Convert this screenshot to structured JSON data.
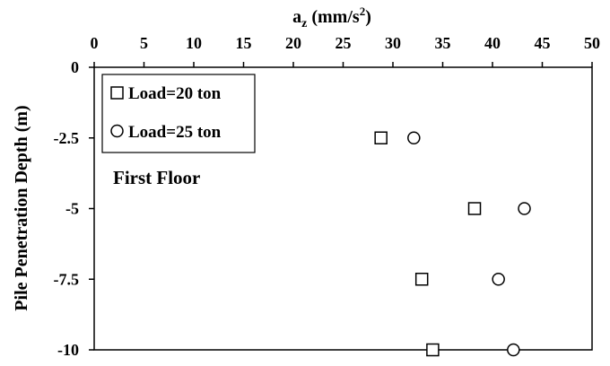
{
  "chart_data": {
    "type": "scatter",
    "x_axis_title": "a",
    "x_axis_title_sub": "z",
    "x_axis_units_prefix": " (mm/s",
    "x_axis_units_sup": "2",
    "x_axis_units_suffix": ")",
    "x_axis_position": "top",
    "y_axis_title": "Pile Penetration Depth (m)",
    "xlim": [
      0,
      50
    ],
    "ylim": [
      -10,
      0
    ],
    "x_ticks": [
      0,
      5,
      10,
      15,
      20,
      25,
      30,
      35,
      40,
      45,
      50
    ],
    "y_ticks": [
      0,
      -2.5,
      -5,
      -7.5,
      -10
    ],
    "y_tick_labels": [
      "0",
      "-2.5",
      "-5",
      "-7.5",
      "-10"
    ],
    "grid": false,
    "legend_position": "top-left",
    "annotation": "First Floor",
    "series": [
      {
        "name": "Load=20 ton",
        "marker": "square",
        "points": [
          {
            "x": 28.8,
            "y": -2.5
          },
          {
            "x": 38.2,
            "y": -5
          },
          {
            "x": 32.9,
            "y": -7.5
          },
          {
            "x": 34.0,
            "y": -10
          }
        ]
      },
      {
        "name": "Load=25 ton",
        "marker": "circle",
        "points": [
          {
            "x": 32.1,
            "y": -2.5
          },
          {
            "x": 43.2,
            "y": -5
          },
          {
            "x": 40.6,
            "y": -7.5
          },
          {
            "x": 42.1,
            "y": -10
          }
        ]
      }
    ]
  }
}
